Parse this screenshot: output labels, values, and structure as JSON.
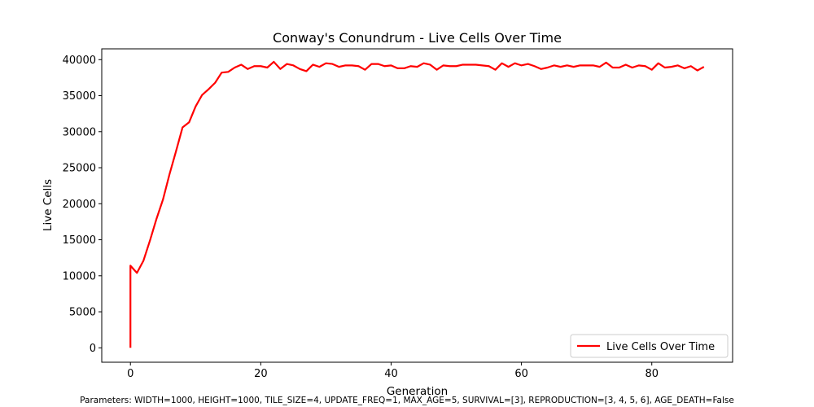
{
  "chart_data": {
    "type": "line",
    "title": "Conway's Conundrum - Live Cells Over Time",
    "xlabel": "Generation",
    "ylabel": "Live Cells",
    "xlim": [
      -4.4,
      92.4
    ],
    "ylim": [
      -2000,
      41500
    ],
    "xticks": [
      0,
      20,
      40,
      60,
      80
    ],
    "yticks": [
      0,
      5000,
      10000,
      15000,
      20000,
      25000,
      30000,
      35000,
      40000
    ],
    "grid": false,
    "legend_position": "lower right",
    "series": [
      {
        "name": "Live Cells Over Time",
        "color": "#ff0000",
        "x": [
          0,
          0,
          1,
          2,
          3,
          4,
          5,
          6,
          7,
          8,
          9,
          10,
          11,
          12,
          13,
          14,
          15,
          16,
          17,
          18,
          19,
          20,
          21,
          22,
          23,
          24,
          25,
          26,
          27,
          28,
          29,
          30,
          31,
          32,
          33,
          34,
          35,
          36,
          37,
          38,
          39,
          40,
          41,
          42,
          43,
          44,
          45,
          46,
          47,
          48,
          49,
          50,
          51,
          52,
          53,
          54,
          55,
          56,
          57,
          58,
          59,
          60,
          61,
          62,
          63,
          64,
          65,
          66,
          67,
          68,
          69,
          70,
          71,
          72,
          73,
          74,
          75,
          76,
          77,
          78,
          79,
          80,
          81,
          82,
          83,
          84,
          85,
          86,
          87,
          88
        ],
        "values": [
          0,
          11400,
          10400,
          12100,
          14900,
          17900,
          20600,
          24100,
          27300,
          30600,
          31300,
          33500,
          35100,
          35900,
          36800,
          38200,
          38300,
          38900,
          39300,
          38700,
          39100,
          39100,
          38900,
          39700,
          38700,
          39400,
          39200,
          38700,
          38400,
          39300,
          39000,
          39500,
          39400,
          39000,
          39200,
          39200,
          39100,
          38600,
          39400,
          39400,
          39100,
          39200,
          38800,
          38800,
          39100,
          39000,
          39500,
          39300,
          38600,
          39200,
          39100,
          39100,
          39300,
          39300,
          39300,
          39200,
          39100,
          38600,
          39500,
          39000,
          39500,
          39200,
          39400,
          39100,
          38700,
          38900,
          39200,
          39000,
          39200,
          39000,
          39200,
          39200,
          39200,
          39000,
          39600,
          38900,
          38900,
          39300,
          38900,
          39200,
          39100,
          38600,
          39500,
          38900,
          39000,
          39200,
          38800,
          39100,
          38500,
          39000
        ]
      }
    ]
  },
  "footer": {
    "parameters": "Parameters: WIDTH=1000, HEIGHT=1000, TILE_SIZE=4, UPDATE_FREQ=1, MAX_AGE=5, SURVIVAL=[3], REPRODUCTION=[3, 4, 5, 6], AGE_DEATH=False"
  }
}
